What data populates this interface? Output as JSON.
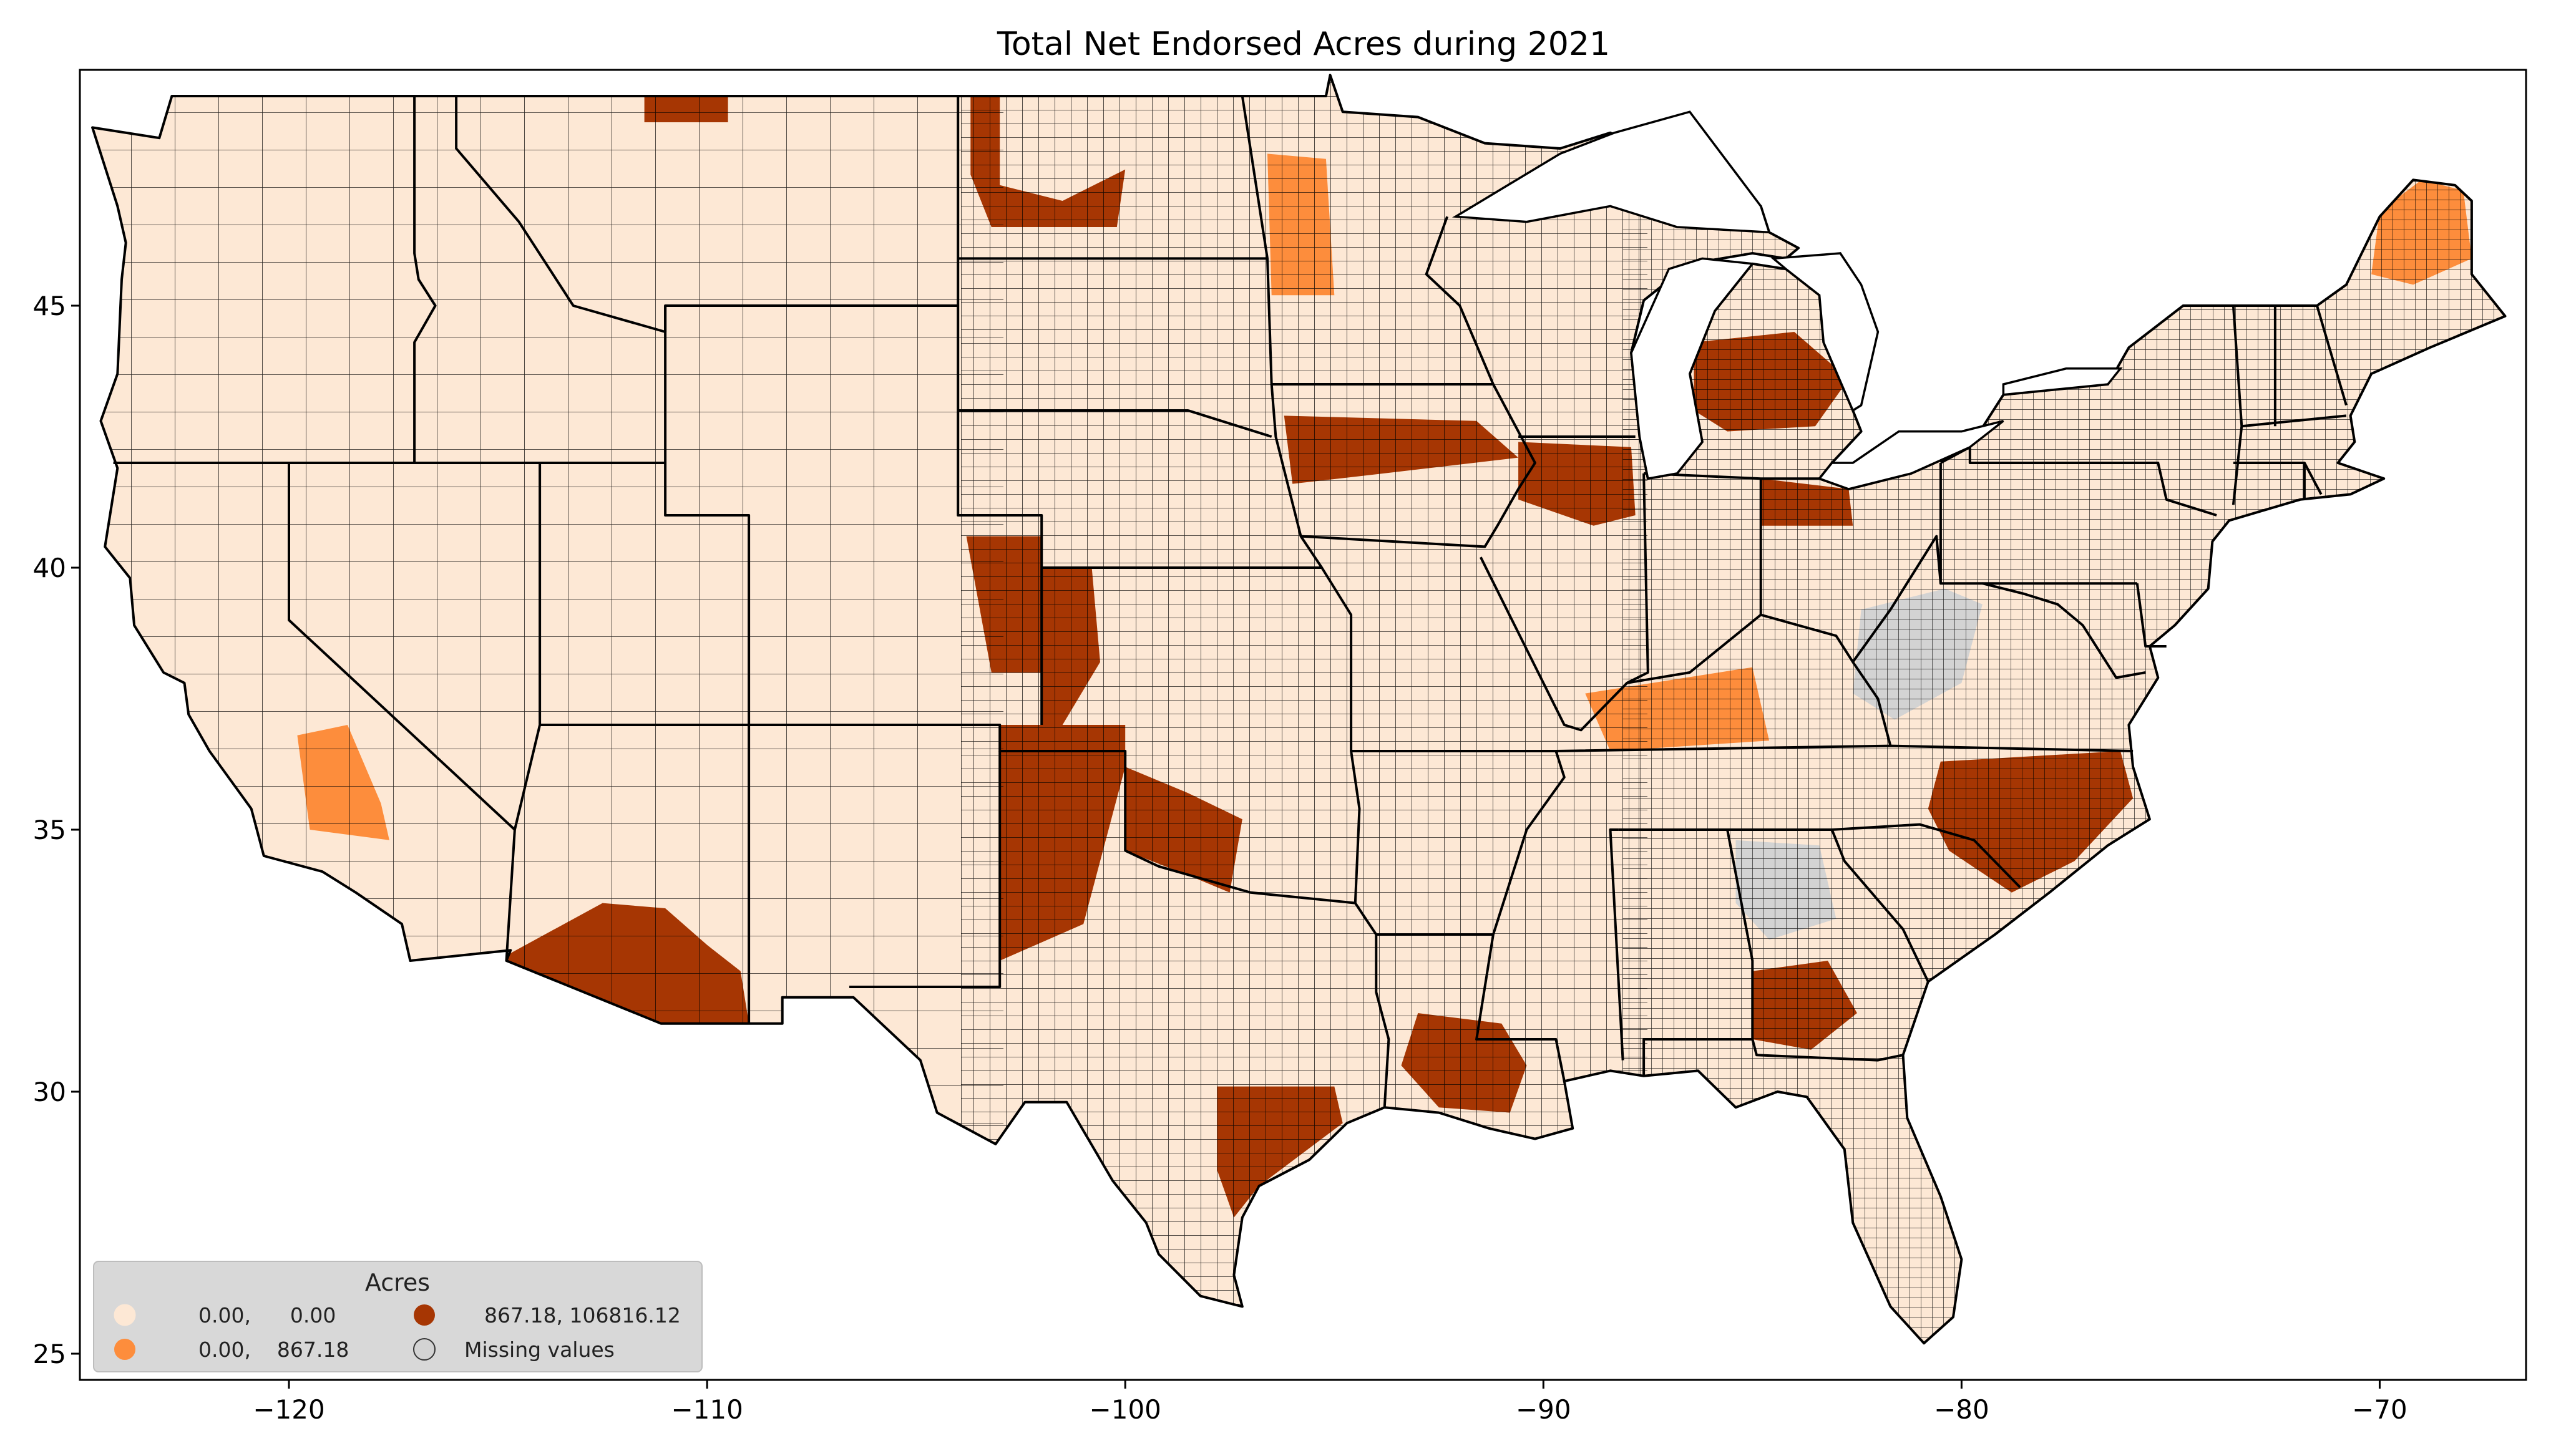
{
  "title": "Total Net Endorsed Acres during 2021",
  "x_axis": {
    "ticks": [
      -120,
      -110,
      -100,
      -90,
      -80,
      -70
    ],
    "labels": [
      "−120",
      "−110",
      "−100",
      "−90",
      "−80",
      "−70"
    ],
    "range": [
      -125,
      -66.5
    ]
  },
  "y_axis": {
    "ticks": [
      25,
      30,
      35,
      40,
      45
    ],
    "labels": [
      "25",
      "30",
      "35",
      "40",
      "45"
    ],
    "range": [
      24.5,
      49.5
    ]
  },
  "legend": {
    "title": "Acres",
    "items": [
      {
        "label": "0.00,      0.00",
        "color": "#fde8d5"
      },
      {
        "label": "0.00,    867.18",
        "color": "#fd8d3c"
      },
      {
        "label": "867.18, 106816.12",
        "color": "#a63603"
      },
      {
        "label": "Missing values",
        "color": "#d3d3d3"
      }
    ]
  },
  "colors": {
    "low": "#fde8d5",
    "mid": "#fd8d3c",
    "high": "#a63603",
    "missing": "#d3d3d3",
    "border": "#000000"
  },
  "chart_data": {
    "type": "map",
    "projection": "plate carree (longitude / latitude)",
    "xlim": [
      -125,
      -66.5
    ],
    "ylim": [
      24.5,
      49.5
    ],
    "regions": [
      {
        "name": "Arizona south",
        "class": "high",
        "lon": -111.5,
        "lat": 32.5
      },
      {
        "name": "Oklahoma / Texas panhandle",
        "class": "high",
        "lon": -101.5,
        "lat": 35.5
      },
      {
        "name": "Western Kansas",
        "class": "high",
        "lon": -101.5,
        "lat": 38.5
      },
      {
        "name": "Eastern Colorado",
        "class": "high",
        "lon": -102.8,
        "lat": 39.5
      },
      {
        "name": "North Dakota west",
        "class": "high",
        "lon": -102.5,
        "lat": 46.8
      },
      {
        "name": "Montana northeast",
        "class": "high",
        "lon": -110.5,
        "lat": 48.7
      },
      {
        "name": "Iowa north",
        "class": "high",
        "lon": -94.0,
        "lat": 42.5
      },
      {
        "name": "Illinois north",
        "class": "high",
        "lon": -89.5,
        "lat": 41.8
      },
      {
        "name": "Michigan",
        "class": "high",
        "lon": -84.5,
        "lat": 43.2
      },
      {
        "name": "Ohio northwest",
        "class": "high",
        "lon": -83.5,
        "lat": 41.3
      },
      {
        "name": "North Carolina east",
        "class": "high",
        "lon": -78.5,
        "lat": 35.3
      },
      {
        "name": "Louisiana",
        "class": "high",
        "lon": -91.8,
        "lat": 30.5
      },
      {
        "name": "Texas gulf coast",
        "class": "high",
        "lon": -96.5,
        "lat": 29.0
      },
      {
        "name": "Georgia south",
        "class": "high",
        "lon": -84.3,
        "lat": 31.5
      },
      {
        "name": "Kentucky west",
        "class": "mid",
        "lon": -86.0,
        "lat": 37.0
      },
      {
        "name": "California central",
        "class": "mid",
        "lon": -118.5,
        "lat": 35.5
      },
      {
        "name": "Maine north",
        "class": "mid",
        "lon": -68.8,
        "lat": 46.5
      },
      {
        "name": "Minnesota west",
        "class": "mid",
        "lon": -95.8,
        "lat": 46.5
      },
      {
        "name": "West Virginia / Appalachia",
        "class": "missing",
        "lon": -81.0,
        "lat": 38.0
      },
      {
        "name": "Northern Georgia",
        "class": "missing",
        "lon": -84.0,
        "lat": 33.8
      }
    ]
  }
}
